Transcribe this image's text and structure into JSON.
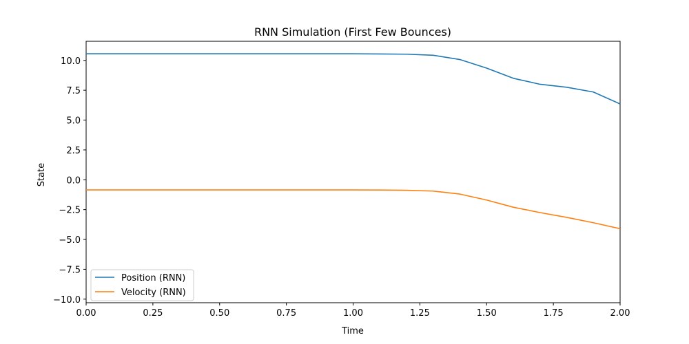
{
  "chart_data": {
    "type": "line",
    "title": "RNN Simulation (First Few Bounces)",
    "xlabel": "Time",
    "ylabel": "State",
    "xlim": [
      0.0,
      2.0
    ],
    "ylim": [
      -10.3,
      11.6
    ],
    "xticks": [
      0.0,
      0.25,
      0.5,
      0.75,
      1.0,
      1.25,
      1.5,
      1.75,
      2.0
    ],
    "xtick_labels": [
      "0.00",
      "0.25",
      "0.50",
      "0.75",
      "1.00",
      "1.25",
      "1.50",
      "1.75",
      "2.00"
    ],
    "yticks": [
      -10.0,
      -7.5,
      -5.0,
      -2.5,
      0.0,
      2.5,
      5.0,
      7.5,
      10.0
    ],
    "ytick_labels": [
      "−10.0",
      "−7.5",
      "−5.0",
      "−2.5",
      "0.0",
      "2.5",
      "5.0",
      "7.5",
      "10.0"
    ],
    "grid": false,
    "legend_position": "lower-left",
    "x": [
      0.0,
      0.1,
      0.2,
      0.3,
      0.4,
      0.5,
      0.6,
      0.7,
      0.8,
      0.9,
      1.0,
      1.1,
      1.2,
      1.3,
      1.4,
      1.5,
      1.6,
      1.7,
      1.8,
      1.9,
      2.0
    ],
    "series": [
      {
        "name": "Position (RNN)",
        "color": "#1f77b4",
        "values": [
          10.55,
          10.55,
          10.55,
          10.55,
          10.55,
          10.55,
          10.55,
          10.55,
          10.55,
          10.55,
          10.55,
          10.54,
          10.52,
          10.43,
          10.07,
          9.35,
          8.5,
          8.0,
          7.75,
          7.35,
          6.35
        ]
      },
      {
        "name": "Velocity (RNN)",
        "color": "#ff7f0e",
        "values": [
          -0.85,
          -0.85,
          -0.85,
          -0.85,
          -0.85,
          -0.85,
          -0.85,
          -0.85,
          -0.85,
          -0.85,
          -0.85,
          -0.86,
          -0.88,
          -0.95,
          -1.2,
          -1.7,
          -2.3,
          -2.75,
          -3.15,
          -3.6,
          -4.1
        ]
      }
    ]
  }
}
